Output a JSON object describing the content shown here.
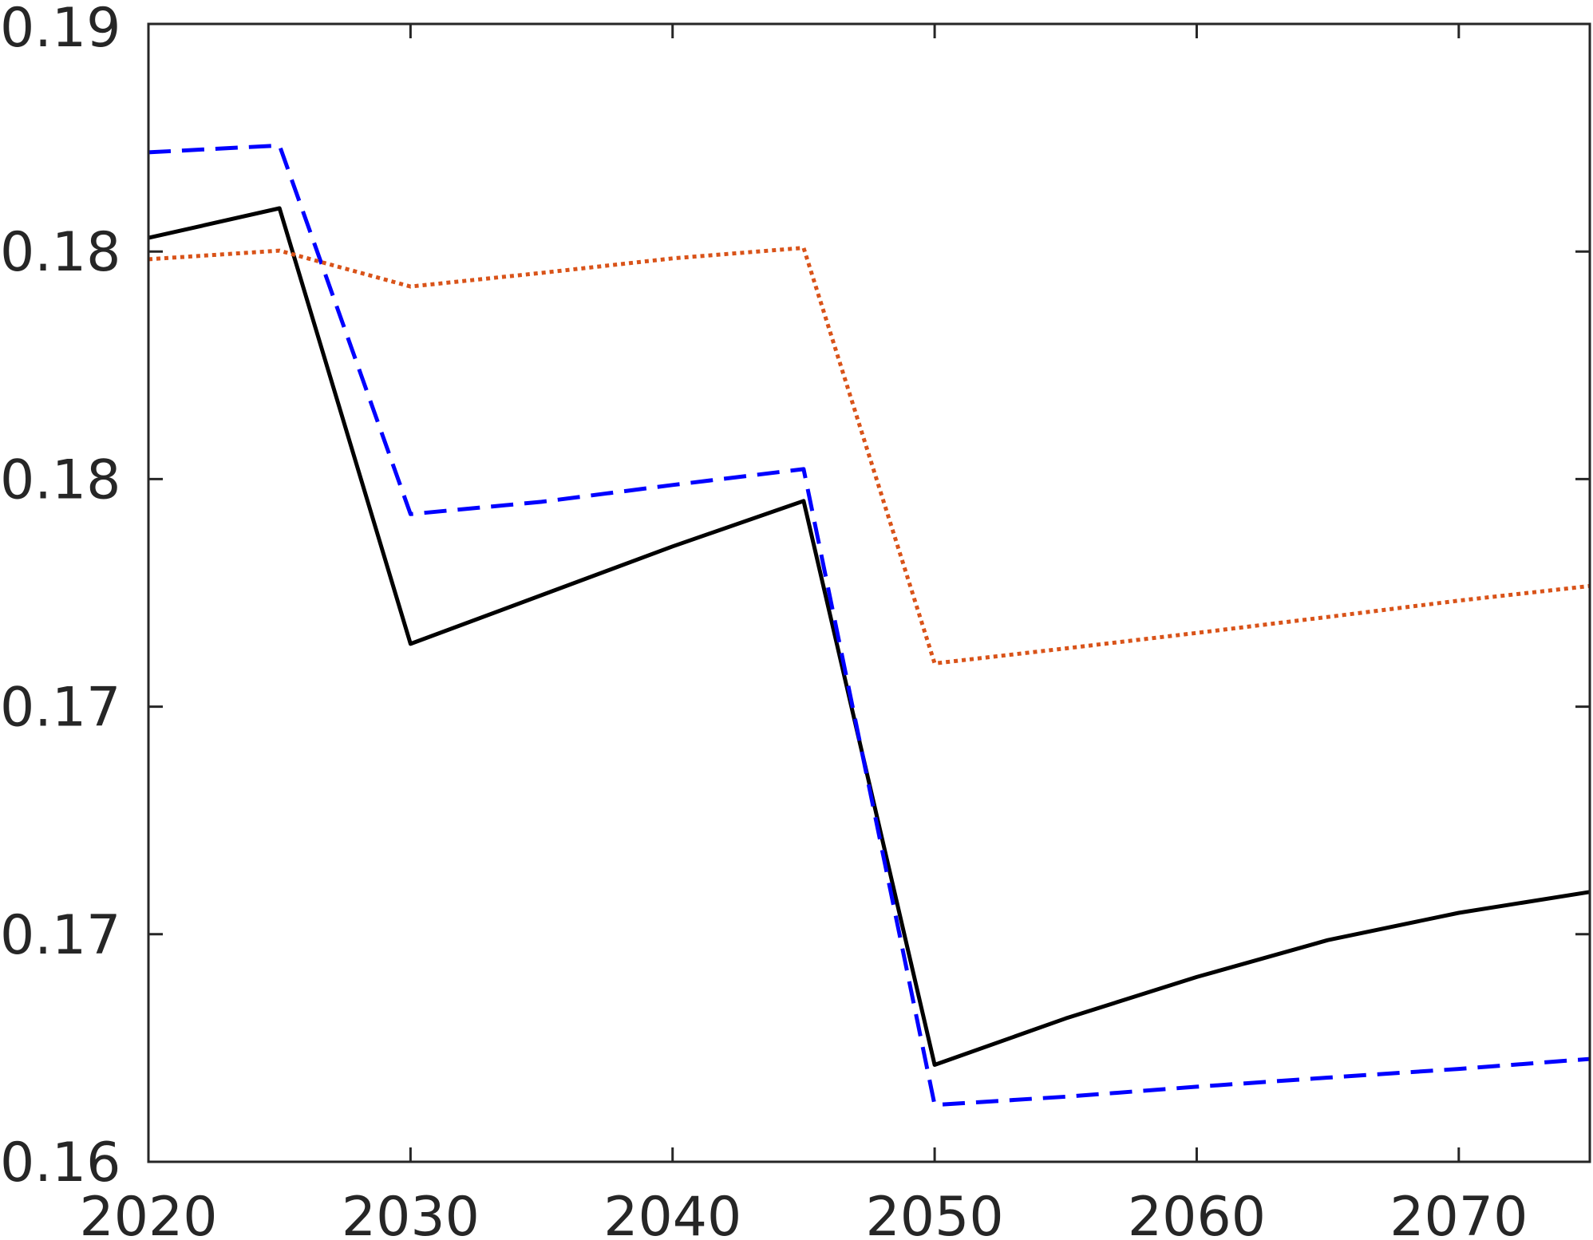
{
  "chart_data": {
    "type": "line",
    "title": "",
    "xlabel": "",
    "ylabel": "",
    "xlim": [
      2020,
      2075
    ],
    "ylim": [
      0.16,
      0.185
    ],
    "grid": false,
    "x_ticks": [
      {
        "value": 2020,
        "label": "2020"
      },
      {
        "value": 2030,
        "label": "2030"
      },
      {
        "value": 2040,
        "label": "2040"
      },
      {
        "value": 2050,
        "label": "2050"
      },
      {
        "value": 2060,
        "label": "2060"
      },
      {
        "value": 2070,
        "label": "2070"
      }
    ],
    "y_ticks": [
      {
        "value": 0.16,
        "label": "0.16"
      },
      {
        "value": 0.165,
        "label": "0.17"
      },
      {
        "value": 0.17,
        "label": "0.17"
      },
      {
        "value": 0.175,
        "label": "0.18"
      },
      {
        "value": 0.18,
        "label": "0.18"
      },
      {
        "value": 0.185,
        "label": "0.19"
      }
    ],
    "x": [
      2020,
      2025,
      2030,
      2035,
      2040,
      2045,
      2050,
      2055,
      2060,
      2065,
      2070,
      2075
    ],
    "series": [
      {
        "color": "#000000",
        "dash": "solid",
        "values": [
          0.1803,
          0.18095,
          0.17138,
          0.17245,
          0.17352,
          0.17452,
          0.16213,
          0.16315,
          0.16406,
          0.16487,
          0.16547,
          0.16593
        ]
      },
      {
        "color": "#0000ff",
        "dash": "dashed",
        "values": [
          0.18218,
          0.18233,
          0.17423,
          0.1745,
          0.17487,
          0.17522,
          0.16125,
          0.16143,
          0.16165,
          0.16185,
          0.16204,
          0.16226
        ]
      },
      {
        "color": "#d95319",
        "dash": "dotted",
        "values": [
          0.17983,
          0.18002,
          0.17923,
          0.17953,
          0.17985,
          0.18008,
          0.17095,
          0.17128,
          0.17162,
          0.17197,
          0.17233,
          0.17265
        ]
      }
    ]
  }
}
